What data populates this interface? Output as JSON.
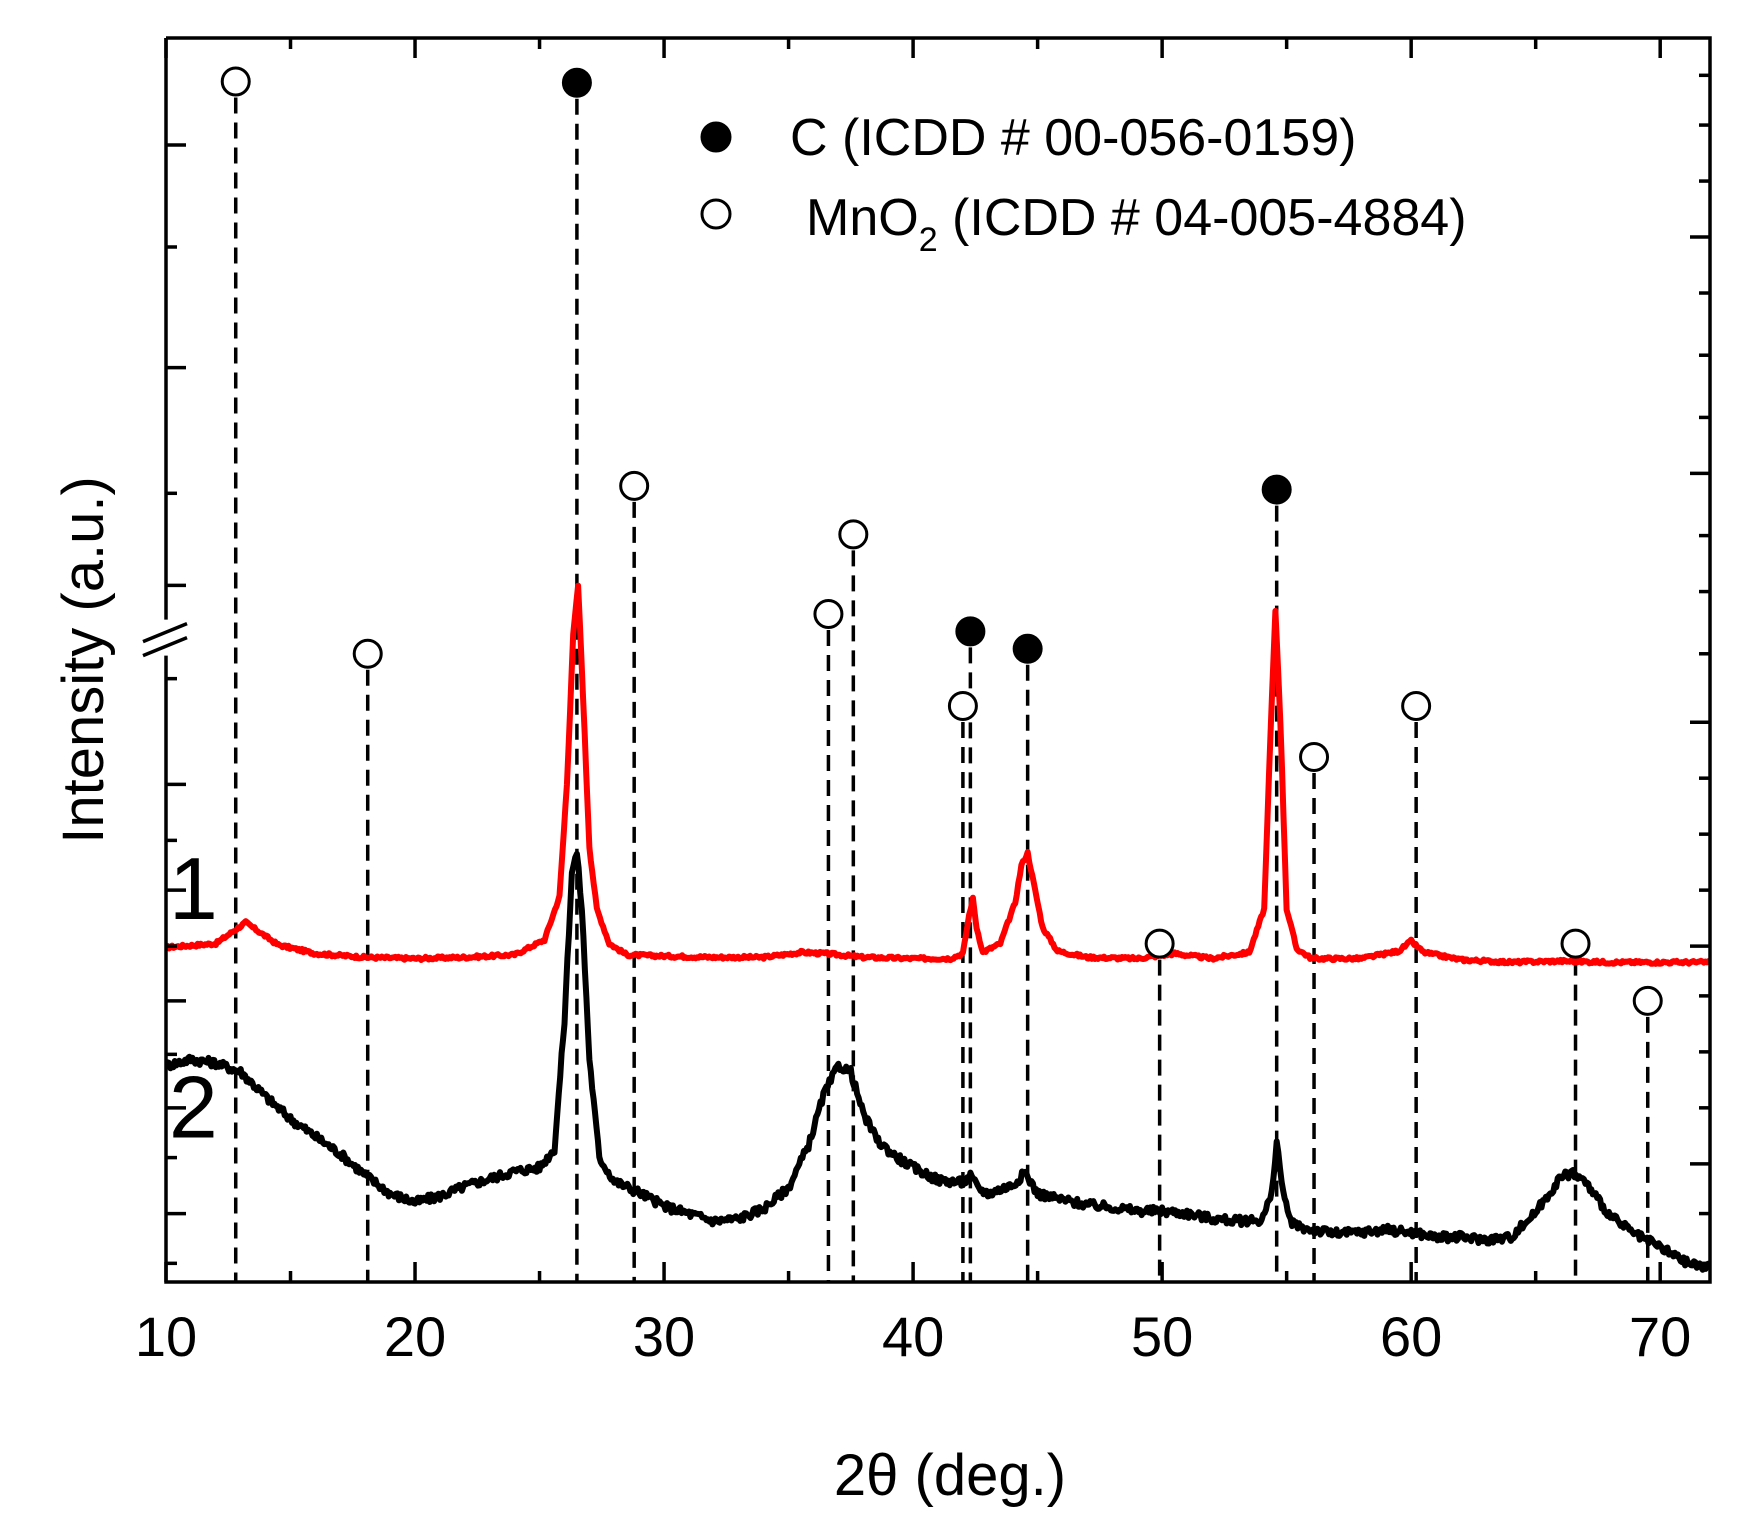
{
  "chart_data": {
    "type": "line",
    "title": "",
    "xlabel": "2θ (deg.)",
    "ylabel": "Intensity (a.u.)",
    "xlim": [
      10,
      72
    ],
    "ylim": [
      0,
      100
    ],
    "x_ticks": [
      10,
      20,
      30,
      40,
      50,
      60,
      70
    ],
    "y_axis_break": true,
    "grid": false,
    "legend_position": "top-right",
    "legend": [
      {
        "marker": "filled-circle",
        "label": "C (ICDD # 00-056-0159)"
      },
      {
        "marker": "open-circle",
        "label_prefix": "MnO",
        "label_sub": "2",
        "label_suffix": " (ICDD # 04-005-4884)"
      }
    ],
    "series": [
      {
        "name": "1",
        "color": "#ff0000",
        "x": [
          10,
          12,
          13.2,
          14.5,
          16,
          18,
          20,
          22,
          24,
          25.2,
          25.8,
          26.1,
          26.35,
          26.55,
          26.75,
          27.0,
          27.3,
          27.8,
          28.5,
          30,
          32,
          34,
          35.5,
          36.5,
          38,
          40,
          41.5,
          42.0,
          42.25,
          42.4,
          42.55,
          42.8,
          43.5,
          44.1,
          44.35,
          44.6,
          44.85,
          45.2,
          45.8,
          47,
          49,
          50.5,
          52,
          53.5,
          54.1,
          54.35,
          54.55,
          54.75,
          55.0,
          55.4,
          56,
          58,
          59.5,
          60,
          60.5,
          62,
          64,
          66,
          68,
          70,
          72
        ],
        "y": [
          26.9,
          27.2,
          28.9,
          27.1,
          26.4,
          26.1,
          26.0,
          26.1,
          26.3,
          27.5,
          31,
          40,
          52,
          56,
          47,
          35,
          30,
          27.2,
          26.3,
          26.2,
          26.1,
          26.1,
          26.5,
          26.4,
          26.1,
          26.0,
          26.0,
          26.4,
          29.5,
          30.8,
          28.5,
          26.5,
          27.2,
          30.5,
          33.5,
          34.5,
          32,
          28.5,
          26.6,
          26.1,
          26.0,
          26.4,
          26.0,
          26.5,
          30,
          44,
          54,
          45,
          30,
          26.8,
          26.0,
          26.0,
          26.6,
          27.4,
          26.5,
          25.9,
          25.7,
          25.8,
          25.7,
          25.7,
          25.7
        ]
      },
      {
        "name": "2",
        "color": "#000000",
        "x": [
          10,
          11,
          12,
          13,
          14,
          15,
          16,
          17,
          18,
          19,
          20,
          21,
          22,
          23,
          24,
          25,
          25.6,
          26.0,
          26.3,
          26.5,
          26.7,
          27.0,
          27.4,
          28,
          29,
          30,
          31,
          32,
          33,
          34,
          35,
          35.8,
          36.4,
          37.0,
          37.5,
          38.0,
          38.6,
          39.3,
          40,
          41,
          42,
          42.3,
          42.6,
          43,
          44,
          44.5,
          45,
          46,
          47,
          48,
          49,
          50,
          51,
          52,
          53,
          54,
          54.4,
          54.6,
          54.8,
          55.1,
          55.5,
          56,
          57,
          58,
          59,
          60,
          61,
          62,
          63,
          64,
          65,
          66,
          66.5,
          67,
          68,
          69,
          70,
          71,
          72
        ],
        "y": [
          17.4,
          17.9,
          17.6,
          16.9,
          14.9,
          13.1,
          11.7,
          10.3,
          8.6,
          7.1,
          6.4,
          6.9,
          7.7,
          8.3,
          8.9,
          9.2,
          10.7,
          21,
          33,
          34.5,
          30,
          18,
          10,
          8.1,
          7.2,
          6.1,
          5.5,
          4.9,
          5.1,
          5.9,
          7.6,
          11,
          15,
          17.4,
          16.9,
          13.5,
          11.3,
          10.1,
          9.2,
          8.2,
          8.0,
          8.5,
          7.6,
          7.1,
          7.8,
          8.8,
          7.1,
          6.6,
          6.2,
          6.0,
          5.7,
          5.7,
          5.5,
          5.1,
          4.9,
          5.0,
          7,
          11.4,
          8,
          5,
          4.4,
          4.2,
          3.9,
          4.0,
          4.2,
          4.0,
          3.6,
          3.6,
          3.4,
          3.6,
          5.6,
          8.4,
          8.8,
          8.0,
          5.3,
          3.8,
          2.8,
          1.6,
          1.1
        ]
      }
    ],
    "reference_lines": [
      {
        "x": 12.8,
        "phase": "MnO2",
        "marker": "open",
        "marker_y": 96.5
      },
      {
        "x": 18.1,
        "phase": "MnO2",
        "marker": "open",
        "marker_y": 50.5
      },
      {
        "x": 26.5,
        "phase": "C",
        "marker": "filled",
        "marker_y": 96.4
      },
      {
        "x": 28.8,
        "phase": "MnO2",
        "marker": "open",
        "marker_y": 64.0
      },
      {
        "x": 36.6,
        "phase": "MnO2",
        "marker": "open",
        "marker_y": 53.7
      },
      {
        "x": 37.6,
        "phase": "MnO2",
        "marker": "open",
        "marker_y": 60.1
      },
      {
        "x": 42.0,
        "phase": "MnO2",
        "marker": "open",
        "marker_y": 46.3
      },
      {
        "x": 42.3,
        "phase": "C",
        "marker": "filled",
        "marker_y": 52.3
      },
      {
        "x": 44.6,
        "phase": "C",
        "marker": "filled",
        "marker_y": 50.9
      },
      {
        "x": 49.9,
        "phase": "MnO2",
        "marker": "open",
        "marker_y": 27.2
      },
      {
        "x": 54.6,
        "phase": "C",
        "marker": "filled",
        "marker_y": 63.7
      },
      {
        "x": 56.1,
        "phase": "MnO2",
        "marker": "open",
        "marker_y": 42.2
      },
      {
        "x": 60.2,
        "phase": "MnO2",
        "marker": "open",
        "marker_y": 46.3
      },
      {
        "x": 66.6,
        "phase": "MnO2",
        "marker": "open",
        "marker_y": 27.2
      },
      {
        "x": 69.5,
        "phase": "MnO2",
        "marker": "open",
        "marker_y": 22.6
      }
    ],
    "annotations": [
      {
        "text": "1",
        "x": 11.1,
        "y": 29.2
      },
      {
        "text": "2",
        "x": 11.1,
        "y": 11.6
      }
    ]
  }
}
